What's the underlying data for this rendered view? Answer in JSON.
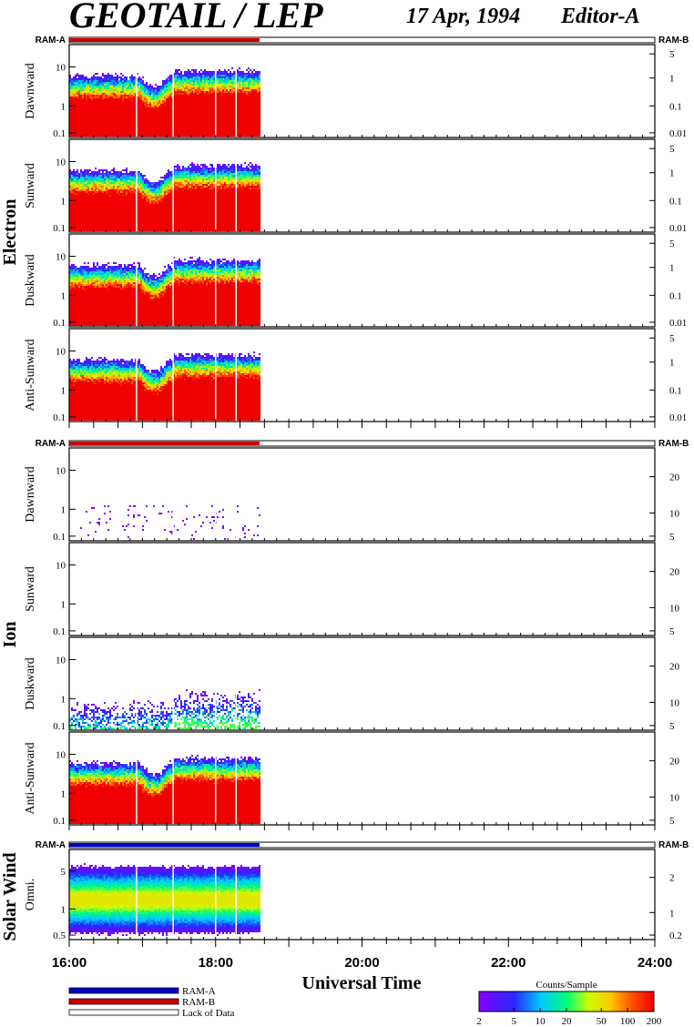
{
  "header": {
    "title": "GEOTAIL / LEP",
    "date": "17 Apr, 1994",
    "editor": "Editor-A"
  },
  "chart_data": {
    "type": "heatmap",
    "x_axis": {
      "label": "Universal Time",
      "ticks": [
        "16:00",
        "18:00",
        "20:00",
        "22:00",
        "24:00"
      ],
      "range_hours": [
        16,
        24
      ],
      "data_end_hour": 18.6,
      "data_gaps_hours": [
        16.92,
        17.42,
        18.0,
        18.28
      ]
    },
    "groups": [
      {
        "name": "Electron",
        "mode_left": "RAM-A",
        "mode_right": "RAM-B",
        "mode_bar": "RAM-B",
        "panels": [
          {
            "name": "Dawnward",
            "left_ticks": [
              "10",
              "1",
              "0.1"
            ],
            "right_ticks": [
              "5",
              "1",
              "0.1",
              "0.01"
            ]
          },
          {
            "name": "Sunward",
            "left_ticks": [
              "10",
              "1",
              "0.1"
            ],
            "right_ticks": [
              "5",
              "1",
              "0.1",
              "0.01"
            ]
          },
          {
            "name": "Duskward",
            "left_ticks": [
              "10",
              "1",
              "0.1"
            ],
            "right_ticks": [
              "5",
              "1",
              "0.1",
              "0.01"
            ]
          },
          {
            "name": "Anti-Sunward",
            "left_ticks": [
              "10",
              "1",
              "0.1"
            ],
            "right_ticks": [
              "5",
              "1",
              "0.1",
              "0.01"
            ]
          }
        ]
      },
      {
        "name": "Ion",
        "mode_left": "RAM-A",
        "mode_right": "RAM-B",
        "mode_bar": "RAM-B",
        "panels": [
          {
            "name": "Dawnward",
            "left_ticks": [
              "10",
              "1",
              "0.1"
            ],
            "right_ticks": [
              "20",
              "10",
              "5"
            ]
          },
          {
            "name": "Sunward",
            "left_ticks": [
              "10",
              "1",
              "0.1"
            ],
            "right_ticks": [
              "20",
              "10",
              "5"
            ]
          },
          {
            "name": "Duskward",
            "left_ticks": [
              "10",
              "1",
              "0.1"
            ],
            "right_ticks": [
              "20",
              "10",
              "5"
            ]
          },
          {
            "name": "Anti-Sunward",
            "left_ticks": [
              "10",
              "1",
              "0.1"
            ],
            "right_ticks": [
              "20",
              "10",
              "5"
            ]
          }
        ]
      },
      {
        "name": "Solar Wind",
        "mode_left": "RAM-A",
        "mode_right": "RAM-B",
        "mode_bar": "RAM-A",
        "panels": [
          {
            "name": "Omni.",
            "left_ticks": [
              "5",
              "1",
              "0.5"
            ],
            "right_ticks": [
              "2",
              "1",
              "0.2"
            ]
          }
        ]
      }
    ],
    "legend": {
      "items": [
        {
          "label": "RAM-A",
          "color": "#0000cc"
        },
        {
          "label": "RAM-B",
          "color": "#cc0000"
        },
        {
          "label": "Lack of Data",
          "color": "#ffffff"
        }
      ]
    },
    "colorbar": {
      "title": "Counts/Sample",
      "ticks": [
        "2",
        "5",
        "10",
        "20",
        "50",
        "100",
        "200"
      ],
      "scale": "log",
      "range": [
        2,
        200
      ]
    }
  }
}
